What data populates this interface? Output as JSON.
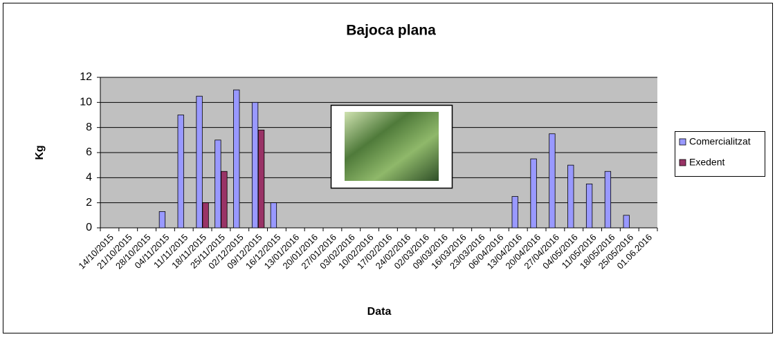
{
  "chart_data": {
    "type": "bar",
    "title": "Bajoca plana",
    "x_label": "Data",
    "y_label": "Kg",
    "categories": [
      "14/10/2015",
      "21/10/2015",
      "28/10/2015",
      "04/11/2015",
      "11/11/2015",
      "18/11/2015",
      "25/11/2015",
      "02/12/2015",
      "09/12/2015",
      "16/12/2015",
      "13/01/2016",
      "20/01/2016",
      "27/01/2016",
      "03/02/2016",
      "10/02/2016",
      "17/02/2016",
      "24/02/2016",
      "02/03/2016",
      "09/03/2016",
      "16/03/2016",
      "23/03/2016",
      "06/04/2016",
      "13/04/2016",
      "20/04/2016",
      "27/04/2016",
      "04/05/2016",
      "11/05/2016",
      "18/05/2016",
      "25/05/2016",
      "01.06.2016"
    ],
    "series": [
      {
        "name": "Comercialitzat",
        "color": "#9999ff",
        "values": [
          null,
          null,
          null,
          1.3,
          9,
          10.5,
          7,
          11,
          10,
          2,
          null,
          null,
          null,
          null,
          null,
          null,
          null,
          null,
          null,
          null,
          null,
          null,
          2.5,
          5.5,
          7.5,
          5,
          3.5,
          4.5,
          1,
          null
        ]
      },
      {
        "name": "Exedent",
        "color": "#993366",
        "values": [
          null,
          null,
          null,
          null,
          null,
          2,
          4.5,
          null,
          7.8,
          null,
          null,
          null,
          null,
          null,
          null,
          null,
          null,
          null,
          null,
          null,
          null,
          null,
          null,
          null,
          null,
          null,
          null,
          null,
          null,
          null
        ]
      }
    ],
    "ylim": [
      0,
      12
    ],
    "yticks": [
      0,
      2,
      4,
      6,
      8,
      10,
      12
    ],
    "grid": true,
    "legend": "right"
  }
}
